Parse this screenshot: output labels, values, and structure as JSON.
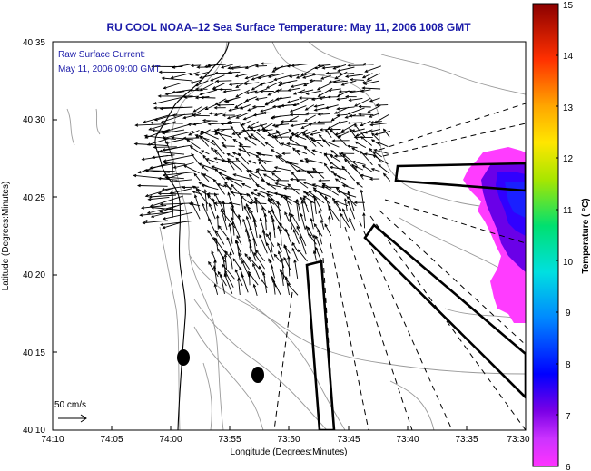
{
  "title": "RU COOL  NOAA–12  Sea Surface Temperature:  May 11, 2006 1008 GMT",
  "annotation": {
    "line1": "Raw Surface Current:",
    "line2": "May 11, 2006 09:00 GMT"
  },
  "scale_label": "50 cm/s",
  "x_axis": {
    "label": "Longitude (Degrees:Minutes)",
    "ticks": [
      "74:10",
      "74:05",
      "74:00",
      "73:55",
      "73:50",
      "73:45",
      "73:40",
      "73:35",
      "73:30"
    ]
  },
  "y_axis": {
    "label": "Latitude (Degrees:Minutes)",
    "ticks": [
      "40:35",
      "40:30",
      "40:25",
      "40:20",
      "40:15",
      "40:10"
    ]
  },
  "colorbar": {
    "label": "Temperature ( °C)",
    "ticks": [
      "15",
      "14",
      "13",
      "12",
      "11",
      "10",
      "9",
      "8",
      "7",
      "6"
    ],
    "range": [
      6,
      15
    ]
  },
  "colors": {
    "title": "#1a1aa8",
    "cold_patch": "#6a00e8",
    "warm_patch": "#ff3cff"
  }
}
